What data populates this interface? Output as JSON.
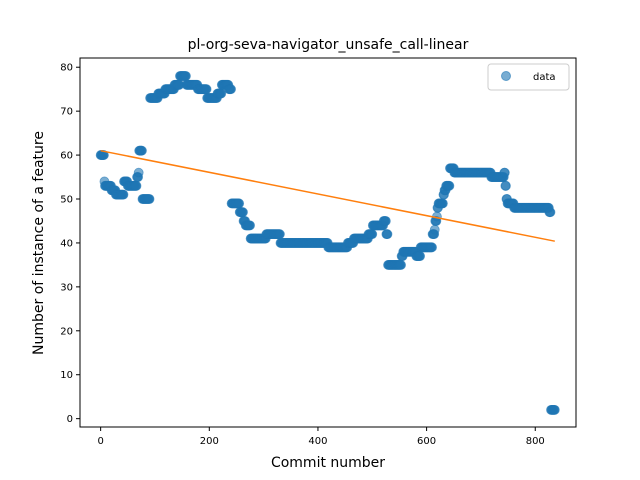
{
  "chart_data": {
    "type": "scatter",
    "title": "pl-org-seva-navigator_unsafe_call-linear",
    "xlabel": "Commit number",
    "ylabel": "Number of instance of a feature",
    "xlim": [
      -38,
      875
    ],
    "ylim": [
      -1.9,
      82.1
    ],
    "xticks": [
      0,
      200,
      400,
      600,
      800
    ],
    "yticks": [
      0,
      10,
      20,
      30,
      40,
      50,
      60,
      70,
      80
    ],
    "legend": {
      "position": "top-right",
      "entries": [
        "data"
      ]
    },
    "colors": {
      "data": "#1f77b4",
      "fit": "#ff7f0e"
    },
    "series": [
      {
        "name": "data",
        "kind": "scatter",
        "segments": [
          [
            0,
            60
          ],
          [
            6,
            60
          ],
          [
            7,
            54
          ],
          [
            8,
            53
          ],
          [
            18,
            53
          ],
          [
            20,
            52
          ],
          [
            26,
            52
          ],
          [
            28,
            51
          ],
          [
            42,
            51
          ],
          [
            43,
            54
          ],
          [
            48,
            54
          ],
          [
            50,
            53
          ],
          [
            66,
            53
          ],
          [
            67,
            55
          ],
          [
            70,
            56
          ],
          [
            71,
            61
          ],
          [
            76,
            61
          ],
          [
            77,
            50
          ],
          [
            90,
            50
          ],
          [
            91,
            73
          ],
          [
            105,
            73
          ],
          [
            106,
            74
          ],
          [
            118,
            74
          ],
          [
            119,
            75
          ],
          [
            135,
            75
          ],
          [
            136,
            76
          ],
          [
            145,
            76
          ],
          [
            146,
            78
          ],
          [
            157,
            78
          ],
          [
            158,
            76
          ],
          [
            178,
            76
          ],
          [
            179,
            75
          ],
          [
            195,
            75
          ],
          [
            196,
            73
          ],
          [
            214,
            73
          ],
          [
            215,
            74
          ],
          [
            222,
            74
          ],
          [
            223,
            76
          ],
          [
            235,
            76
          ],
          [
            236,
            75
          ],
          [
            240,
            75
          ],
          [
            241,
            49
          ],
          [
            255,
            49
          ],
          [
            256,
            47
          ],
          [
            262,
            47
          ],
          [
            263,
            45
          ],
          [
            266,
            45
          ],
          [
            267,
            44
          ],
          [
            275,
            44
          ],
          [
            276,
            41
          ],
          [
            304,
            41
          ],
          [
            305,
            42
          ],
          [
            330,
            42
          ],
          [
            331,
            40
          ],
          [
            418,
            40
          ],
          [
            419,
            39
          ],
          [
            454,
            39
          ],
          [
            455,
            40
          ],
          [
            465,
            40
          ],
          [
            466,
            41
          ],
          [
            492,
            41
          ],
          [
            493,
            42
          ],
          [
            500,
            42
          ],
          [
            501,
            44
          ],
          [
            520,
            44
          ],
          [
            521,
            45
          ],
          [
            525,
            45
          ],
          [
            526,
            42
          ],
          [
            528,
            42
          ],
          [
            529,
            35
          ],
          [
            553,
            35
          ],
          [
            554,
            37
          ],
          [
            556,
            37
          ],
          [
            557,
            38
          ],
          [
            580,
            38
          ],
          [
            581,
            37
          ],
          [
            588,
            37
          ],
          [
            589,
            39
          ],
          [
            610,
            39
          ],
          [
            611,
            42
          ],
          [
            614,
            42
          ],
          [
            615,
            43
          ],
          [
            616,
            45
          ],
          [
            619,
            46
          ],
          [
            620,
            48
          ],
          [
            622,
            49
          ],
          [
            630,
            49
          ],
          [
            631,
            51
          ],
          [
            633,
            52
          ],
          [
            636,
            53
          ],
          [
            642,
            53
          ],
          [
            643,
            57
          ],
          [
            650,
            57
          ],
          [
            651,
            56
          ],
          [
            718,
            56
          ],
          [
            719,
            55
          ],
          [
            742,
            55
          ],
          [
            743,
            56
          ],
          [
            745,
            53
          ],
          [
            747,
            50
          ],
          [
            749,
            49
          ],
          [
            760,
            49
          ],
          [
            761,
            48
          ],
          [
            825,
            48
          ],
          [
            826,
            47
          ],
          [
            828,
            47
          ],
          [
            829,
            2
          ],
          [
            836,
            2
          ]
        ]
      },
      {
        "name": "fit",
        "kind": "line",
        "x": [
          0,
          836
        ],
        "y": [
          61.0,
          40.4
        ]
      }
    ]
  }
}
